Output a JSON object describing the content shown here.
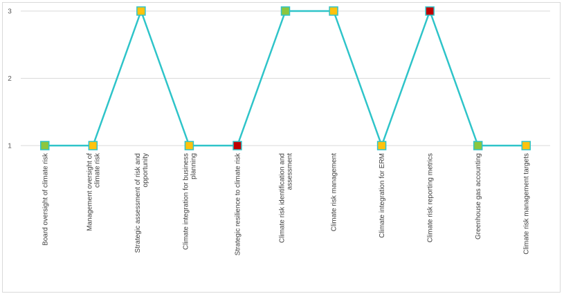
{
  "chart_data": {
    "type": "line",
    "title": "",
    "xlabel": "",
    "ylabel": "",
    "ylim": [
      1,
      3
    ],
    "yticks": [
      "1",
      "2",
      "3"
    ],
    "grid": "horizontal",
    "legend": "none",
    "line_color": "#2ec4c9",
    "categories": [
      [
        "Board oversight of climate risk"
      ],
      [
        "Management oversight of",
        "climate risk"
      ],
      [
        "Strategic assessment of risk and",
        "opportunity"
      ],
      [
        "Climate integration for business",
        "planning"
      ],
      [
        "Strategic resilience to climate risk"
      ],
      [
        "Climate risk identification and",
        "assessment"
      ],
      [
        "Climate risk management"
      ],
      [
        "Climate integration for ERM"
      ],
      [
        "Climate risk reporting metrics"
      ],
      [
        "Greenhouse gas accounting"
      ],
      [
        "Climate risk management targets"
      ]
    ],
    "values": [
      1,
      1,
      3,
      1,
      1,
      3,
      3,
      1,
      3,
      1,
      1
    ],
    "marker_colors": [
      "#8dc63f",
      "#ffc20e",
      "#ffc20e",
      "#ffc20e",
      "#c00000",
      "#8dc63f",
      "#ffc20e",
      "#ffc20e",
      "#c00000",
      "#8dc63f",
      "#ffc20e"
    ]
  }
}
